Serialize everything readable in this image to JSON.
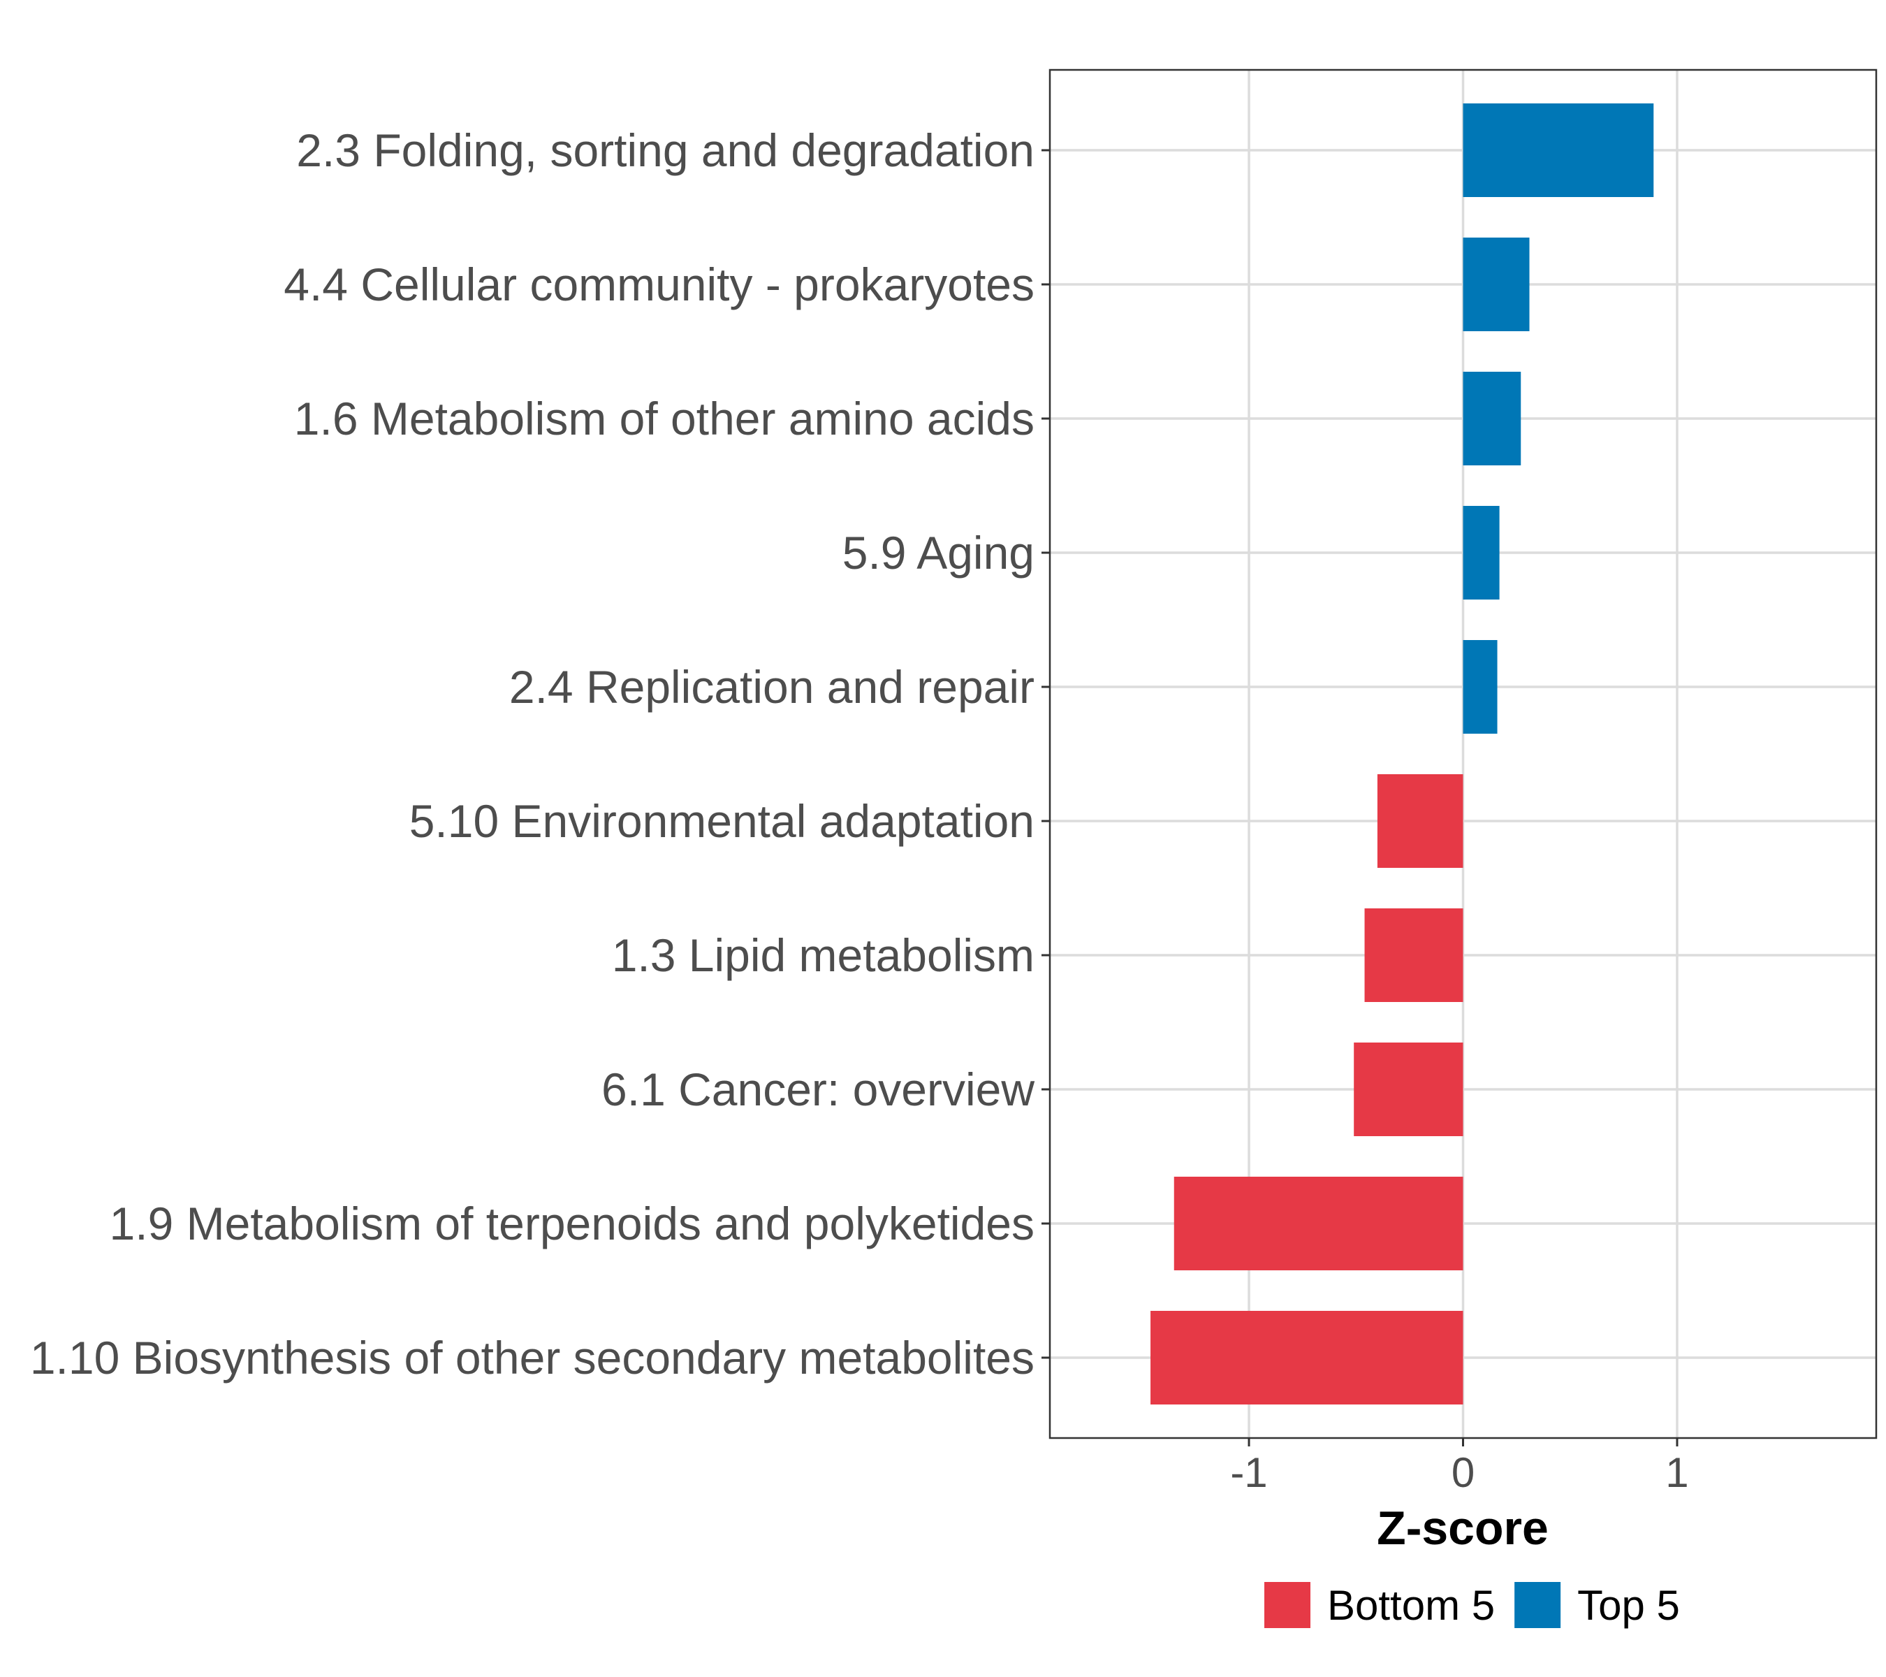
{
  "chart_data": {
    "type": "bar",
    "orientation": "horizontal",
    "categories": [
      "2.3 Folding, sorting and degradation",
      "4.4 Cellular community - prokaryotes",
      "1.6 Metabolism of other amino acids",
      "5.9 Aging",
      "2.4 Replication and repair",
      "5.10 Environmental adaptation",
      "1.3 Lipid metabolism",
      "6.1 Cancer: overview",
      "1.9 Metabolism of terpenoids and polyketides",
      "1.10 Biosynthesis of other secondary metabolites"
    ],
    "values": [
      0.89,
      0.31,
      0.27,
      0.17,
      0.16,
      -0.4,
      -0.46,
      -0.51,
      -1.35,
      -1.46
    ],
    "groups": [
      "Top 5",
      "Top 5",
      "Top 5",
      "Top 5",
      "Top 5",
      "Bottom 5",
      "Bottom 5",
      "Bottom 5",
      "Bottom 5",
      "Bottom 5"
    ],
    "xlabel": "Z-score",
    "ylabel": "",
    "xlim": [
      -1.93,
      1.93
    ],
    "xticks": [
      -1,
      0,
      1
    ],
    "xtick_labels": [
      "-1",
      "0",
      "1"
    ],
    "grid": true,
    "legend": {
      "position": "bottom",
      "entries": [
        {
          "label": "Bottom 5",
          "color": "#e63946"
        },
        {
          "label": "Top 5",
          "color": "#0077b6"
        }
      ]
    }
  }
}
